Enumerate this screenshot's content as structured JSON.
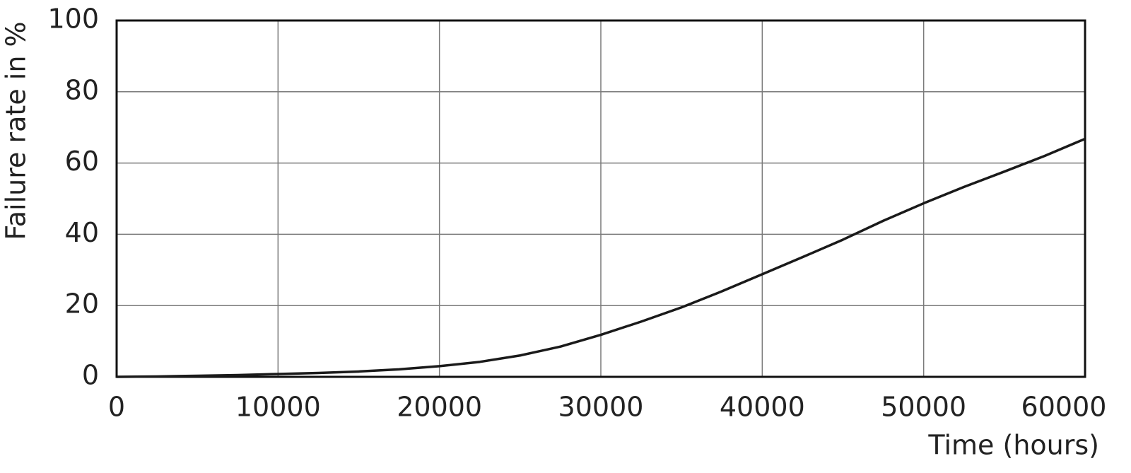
{
  "chart_data": {
    "type": "line",
    "x_label": "Time (hours)",
    "y_label": "Failure rate in %",
    "x": [
      0,
      2500,
      5000,
      7500,
      10000,
      12500,
      15000,
      17500,
      20000,
      22500,
      25000,
      27500,
      30000,
      32500,
      35000,
      37500,
      40000,
      42500,
      45000,
      47500,
      50000,
      52500,
      55000,
      57500,
      60000
    ],
    "series": [
      {
        "color": "#1a1a1a",
        "values": [
          0,
          0.1,
          0.3,
          0.5,
          0.8,
          1.1,
          1.5,
          2.1,
          3.0,
          4.2,
          6.0,
          8.5,
          11.8,
          15.5,
          19.5,
          24,
          28.8,
          33.6,
          38.5,
          43.8,
          48.7,
          53.3,
          57.6,
          62,
          66.8
        ]
      }
    ],
    "xlim": [
      0,
      60000
    ],
    "xticks": [
      0,
      10000,
      20000,
      30000,
      40000,
      50000,
      60000
    ],
    "ylim": [
      0,
      100
    ],
    "yticks": [
      0,
      20,
      40,
      60,
      80,
      100
    ],
    "grid": true
  }
}
